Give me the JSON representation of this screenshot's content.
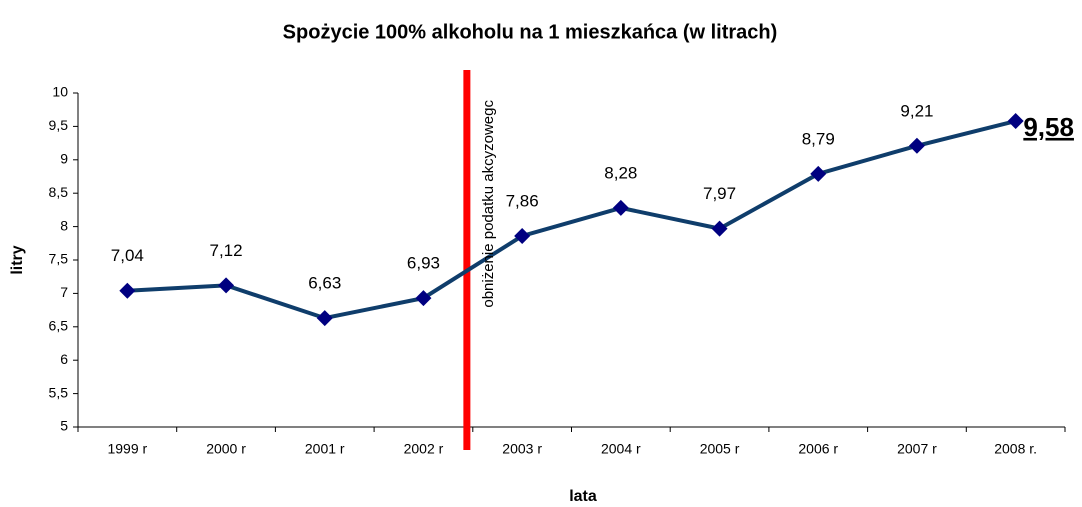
{
  "chart_data": {
    "type": "line",
    "title": "Spożycie 100% alkoholu na 1 mieszkańca (w litrach)",
    "x_label": "lata",
    "y_label": "litry",
    "categories": [
      "1999 r",
      "2000 r",
      "2001 r",
      "2002 r",
      "2003 r",
      "2004 r",
      "2005 r",
      "2006 r",
      "2007 r",
      "2008 r."
    ],
    "series": [
      {
        "name": "Spożycie",
        "color": "#0f3d6b",
        "marker_color": "#000080",
        "values": [
          7.04,
          7.12,
          6.63,
          6.93,
          7.86,
          8.28,
          7.97,
          8.79,
          9.21,
          9.58
        ],
        "value_labels": [
          "7,04",
          "7,12",
          "6,63",
          "6,93",
          "7,86",
          "8,28",
          "7,97",
          "8,79",
          "9,21",
          "9,58"
        ]
      }
    ],
    "ylim": [
      5,
      10
    ],
    "yticks": [
      5,
      {
        "value": 5.5,
        "label": "5,5"
      },
      6,
      {
        "value": 6.5,
        "label": "6,5"
      },
      7,
      {
        "value": 7.5,
        "label": "7,5"
      },
      8,
      {
        "value": 8.5,
        "label": "8,5"
      },
      9,
      {
        "value": 9.5,
        "label": "9,5"
      },
      10
    ],
    "grid": false,
    "annotation": {
      "text": "obniżenie podatku akcyzowegc",
      "color": "#ff0000"
    }
  }
}
